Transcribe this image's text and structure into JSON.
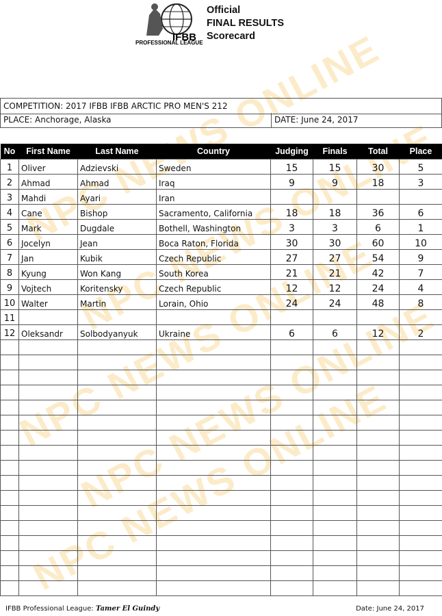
{
  "header": {
    "logo_text": "IFBB",
    "logo_subtext": "PROFESSIONAL LEAGUE",
    "title_lines": [
      "Official",
      "FINAL RESULTS",
      "Scorecard"
    ]
  },
  "watermark": "NPC NEWS ONLINE",
  "competition": "COMPETITION: 2017 IFBB IFBB ARCTIC PRO MEN'S 212",
  "place": "PLACE: Anchorage, Alaska",
  "date": "DATE:  June 24, 2017",
  "columns": [
    "No",
    "First Name",
    "Last Name",
    "Country",
    "Judging",
    "Finals",
    "Total",
    "Place"
  ],
  "rows": [
    [
      "1",
      "Oliver",
      "Adzievski",
      "Sweden",
      "15",
      "15",
      "30",
      "5"
    ],
    [
      "2",
      "Ahmad",
      "Ahmad",
      "Iraq",
      "9",
      "9",
      "18",
      "3"
    ],
    [
      "3",
      "Mahdi",
      "Ayari",
      "Iran",
      "",
      "",
      "",
      ""
    ],
    [
      "4",
      "Cane",
      "Bishop",
      "Sacramento, California",
      "18",
      "18",
      "36",
      "6"
    ],
    [
      "5",
      "Mark",
      "Dugdale",
      "Bothell, Washington",
      "3",
      "3",
      "6",
      "1"
    ],
    [
      "6",
      "Jocelyn",
      "Jean",
      "Boca Raton, Florida",
      "30",
      "30",
      "60",
      "10"
    ],
    [
      "7",
      "Jan",
      "Kubik",
      "Czech Republic",
      "27",
      "27",
      "54",
      "9"
    ],
    [
      "8",
      "Kyung",
      "Won Kang",
      "South Korea",
      "21",
      "21",
      "42",
      "7"
    ],
    [
      "9",
      "Vojtech",
      "Koritensky",
      "Czech Republic",
      "12",
      "12",
      "24",
      "4"
    ],
    [
      "10",
      "Walter",
      "Martin",
      "Lorain, Ohio",
      "24",
      "24",
      "48",
      "8"
    ],
    [
      "11",
      "",
      "",
      "",
      "",
      "",
      "",
      ""
    ],
    [
      "12",
      "Oleksandr",
      "Solbodyanyuk",
      "Ukraine",
      "6",
      "6",
      "12",
      "2"
    ]
  ],
  "empty_rows": 17,
  "footer": {
    "league_label": "IFBB Professional League:",
    "signature": "Tamer El Guindy",
    "date": "Date: June 24, 2017"
  }
}
